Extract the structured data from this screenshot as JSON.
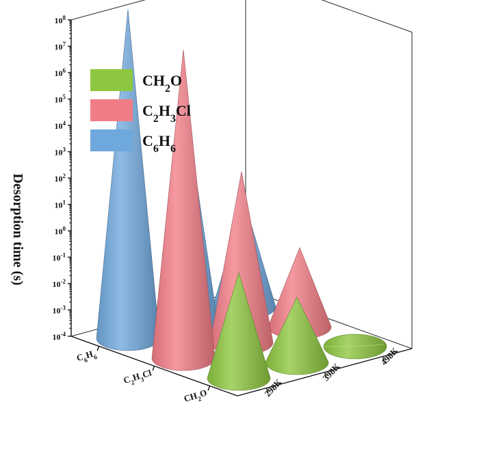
{
  "chart_data": {
    "type": "bar",
    "variant": "3d-cone",
    "ylabel": "Desorption time (s)",
    "yscale": "log",
    "ylim": [
      0.0001,
      100000000
    ],
    "yticks": [
      "10^-4",
      "10^-3",
      "10^-2",
      "10^-1",
      "10^0",
      "10^1",
      "10^2",
      "10^3",
      "10^4",
      "10^5",
      "10^6",
      "10^7",
      "10^8"
    ],
    "molecules": [
      "C6H6",
      "C2H3Cl",
      "CH2O"
    ],
    "molecule_labels": [
      {
        "base": "C",
        "sub1": "6",
        "mid": "H",
        "sub2": "6",
        "tail": ""
      },
      {
        "base": "C",
        "sub1": "2",
        "mid": "H",
        "sub2": "3",
        "tail": "Cl"
      },
      {
        "base": "CH",
        "sub1": "2",
        "mid": "O",
        "sub2": "",
        "tail": ""
      }
    ],
    "temperatures": [
      "298K",
      "398K",
      "498K"
    ],
    "series": [
      {
        "name": "CH2O",
        "color": "#8dc63f",
        "values": [
          1.0,
          0.03,
          0.0001
        ]
      },
      {
        "name": "C2H3Cl",
        "color": "#f27c86",
        "values": [
          50000000,
          300,
          0.1
        ]
      },
      {
        "name": "C6H6",
        "color": "#6fa8dc",
        "values": [
          300000000,
          10000,
          1.0
        ]
      }
    ],
    "legend": {
      "placement": "top-left",
      "entries": [
        {
          "base": "CH",
          "sub1": "2",
          "mid": "O",
          "sub2": "",
          "tail": "",
          "color": "#8dc63f"
        },
        {
          "base": "C",
          "sub1": "2",
          "mid": "H",
          "sub2": "3",
          "tail": "Cl",
          "color": "#f27c86"
        },
        {
          "base": "C",
          "sub1": "6",
          "mid": "H",
          "sub2": "6",
          "tail": "",
          "color": "#6fa8dc"
        }
      ]
    },
    "grid": false
  }
}
